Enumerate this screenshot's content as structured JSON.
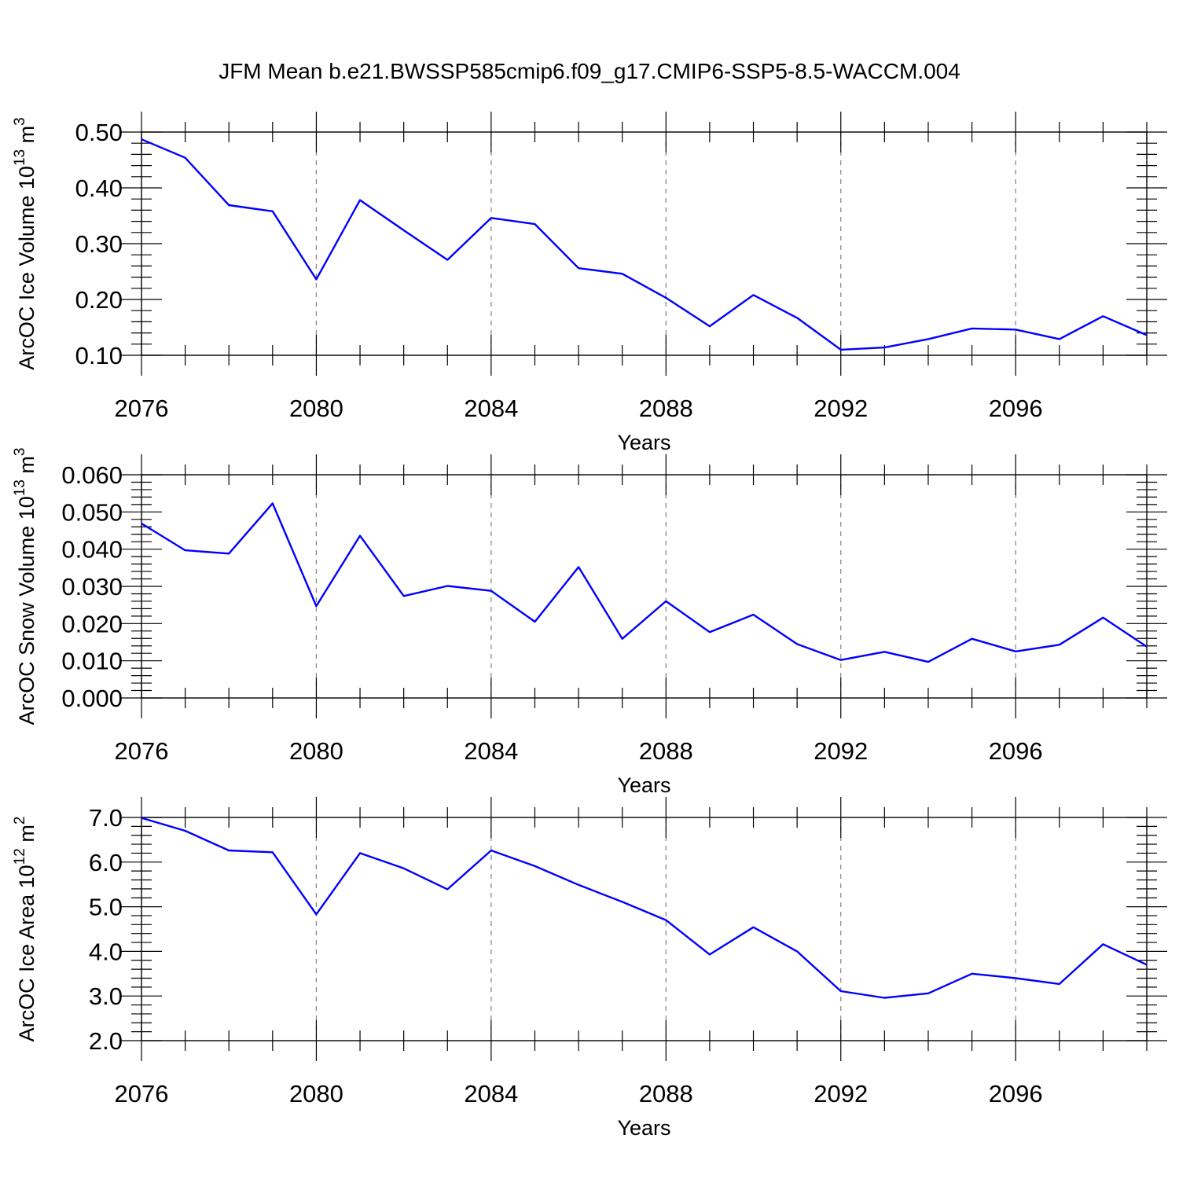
{
  "chart_data": {
    "title": "JFM Mean b.e21.BWSSP585cmip6.f09_g17.CMIP6-SSP5-8.5-WACCM.004",
    "line_color": "#0000ff",
    "panels": [
      {
        "type": "line",
        "ylabel": "ArcOC Ice Volume 10",
        "ylabel_exp": "13",
        "ylabel_unit": " m",
        "ylabel_unit_exp": "3",
        "xlabel": "Years",
        "xlim": [
          2076,
          2099
        ],
        "ylim": [
          0.1,
          0.5
        ],
        "xticks": [
          2076,
          2080,
          2084,
          2088,
          2092,
          2096
        ],
        "xtick_labels": [
          "2076",
          "2080",
          "2084",
          "2088",
          "2092",
          "2096"
        ],
        "yticks": [
          0.1,
          0.2,
          0.3,
          0.4,
          0.5
        ],
        "ytick_labels": [
          "0.10",
          "0.20",
          "0.30",
          "0.40",
          "0.50"
        ],
        "y_minor_step": 0.02,
        "grid": "dashed vertical at major x ticks",
        "series": [
          {
            "name": "Ice Volume",
            "x": [
              2076,
              2077,
              2078,
              2079,
              2080,
              2081,
              2082,
              2083,
              2084,
              2085,
              2086,
              2087,
              2088,
              2089,
              2090,
              2091,
              2092,
              2093,
              2094,
              2095,
              2096,
              2097,
              2098,
              2099
            ],
            "values": [
              0.487,
              0.454,
              0.369,
              0.358,
              0.236,
              0.378,
              0.324,
              0.271,
              0.346,
              0.335,
              0.256,
              0.246,
              0.203,
              0.152,
              0.208,
              0.167,
              0.11,
              0.114,
              0.129,
              0.148,
              0.146,
              0.129,
              0.17,
              0.136
            ]
          }
        ]
      },
      {
        "type": "line",
        "ylabel": "ArcOC Snow Volume 10",
        "ylabel_exp": "13",
        "ylabel_unit": " m",
        "ylabel_unit_exp": "3",
        "xlabel": "Years",
        "xlim": [
          2076,
          2099
        ],
        "ylim": [
          0.0,
          0.06
        ],
        "xticks": [
          2076,
          2080,
          2084,
          2088,
          2092,
          2096
        ],
        "xtick_labels": [
          "2076",
          "2080",
          "2084",
          "2088",
          "2092",
          "2096"
        ],
        "yticks": [
          0.0,
          0.01,
          0.02,
          0.03,
          0.04,
          0.05,
          0.06
        ],
        "ytick_labels": [
          "0.000",
          "0.010",
          "0.020",
          "0.030",
          "0.040",
          "0.050",
          "0.060"
        ],
        "y_minor_step": 0.002,
        "grid": "dashed vertical at major x ticks",
        "series": [
          {
            "name": "Snow Volume",
            "x": [
              2076,
              2077,
              2078,
              2079,
              2080,
              2081,
              2082,
              2083,
              2084,
              2085,
              2086,
              2087,
              2088,
              2089,
              2090,
              2091,
              2092,
              2093,
              2094,
              2095,
              2096,
              2097,
              2098,
              2099
            ],
            "values": [
              0.0469,
              0.0397,
              0.0388,
              0.0523,
              0.0247,
              0.0436,
              0.0274,
              0.0301,
              0.0288,
              0.0205,
              0.0352,
              0.0159,
              0.026,
              0.0177,
              0.0224,
              0.0145,
              0.0102,
              0.0124,
              0.0097,
              0.0159,
              0.0125,
              0.0143,
              0.0216,
              0.0138
            ]
          }
        ]
      },
      {
        "type": "line",
        "ylabel": "ArcOC Ice Area 10",
        "ylabel_exp": "12",
        "ylabel_unit": " m",
        "ylabel_unit_exp": "2",
        "xlabel": "Years",
        "xlim": [
          2076,
          2099
        ],
        "ylim": [
          2.0,
          7.0
        ],
        "xticks": [
          2076,
          2080,
          2084,
          2088,
          2092,
          2096
        ],
        "xtick_labels": [
          "2076",
          "2080",
          "2084",
          "2088",
          "2092",
          "2096"
        ],
        "yticks": [
          2.0,
          3.0,
          4.0,
          5.0,
          6.0,
          7.0
        ],
        "ytick_labels": [
          "2.0",
          "3.0",
          "4.0",
          "5.0",
          "6.0",
          "7.0"
        ],
        "y_minor_step": 0.2,
        "grid": "dashed vertical at major x ticks",
        "series": [
          {
            "name": "Ice Area",
            "x": [
              2076,
              2077,
              2078,
              2079,
              2080,
              2081,
              2082,
              2083,
              2084,
              2085,
              2086,
              2087,
              2088,
              2089,
              2090,
              2091,
              2092,
              2093,
              2094,
              2095,
              2096,
              2097,
              2098,
              2099
            ],
            "values": [
              6.99,
              6.7,
              6.26,
              6.22,
              4.83,
              6.2,
              5.86,
              5.39,
              6.26,
              5.91,
              5.49,
              5.11,
              4.7,
              3.93,
              4.54,
              4.0,
              3.11,
              2.96,
              3.06,
              3.5,
              3.4,
              3.27,
              4.16,
              3.7
            ]
          }
        ]
      }
    ]
  }
}
